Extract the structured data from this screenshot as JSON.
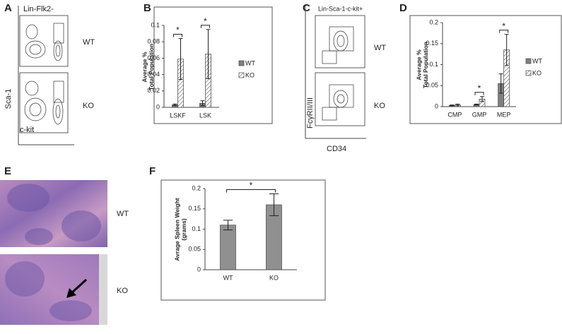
{
  "figure": {
    "panel_a": {
      "letter": "A",
      "gate": "Lin-Flk2-",
      "top_label": "WT",
      "bottom_label": "KO",
      "y_label": "Sca-1",
      "x_label": "c-kit"
    },
    "panel_b_letter": "B",
    "panel_c": {
      "letter": "C",
      "gate": "Lin-Sca-1-c-kit+",
      "top_label": "WT",
      "bottom_label": "KO",
      "y_label": "FcγRII/III",
      "x_label": "CD34"
    },
    "panel_d_letter": "D",
    "panel_e": {
      "letter": "E",
      "top_label": "WT",
      "bottom_label": "KO"
    },
    "panel_f_letter": "F"
  },
  "chart_data": [
    {
      "type": "bar",
      "y_label": "Average % Total Population",
      "categories": [
        "LSKF",
        "LSK"
      ],
      "series": [
        {
          "name": "WT",
          "color": "#808080",
          "values": [
            0.003,
            0.005
          ],
          "errors": [
            0.001,
            0.003
          ]
        },
        {
          "name": "KO",
          "color": "#ffffff",
          "hatched": true,
          "values": [
            0.059,
            0.065
          ],
          "errors": [
            0.025,
            0.03
          ]
        }
      ],
      "ylim": [
        0,
        0.1
      ],
      "yticks": [
        0,
        0.02,
        0.04,
        0.06,
        0.08,
        0.1
      ],
      "annotations": [
        "*",
        "*"
      ],
      "legend": "right"
    },
    {
      "type": "bar",
      "y_label": "Average % Total Population",
      "categories": [
        "CMP",
        "GMP",
        "MEP"
      ],
      "series": [
        {
          "name": "WT",
          "color": "#808080",
          "values": [
            0.003,
            0.005,
            0.055
          ],
          "errors": [
            0.001,
            0.001,
            0.023
          ]
        },
        {
          "name": "KO",
          "color": "#ffffff",
          "hatched": true,
          "values": [
            0.004,
            0.018,
            0.135
          ],
          "errors": [
            0.002,
            0.006,
            0.037
          ]
        }
      ],
      "ylim": [
        0,
        0.2
      ],
      "yticks": [
        0,
        0.05,
        0.1,
        0.15,
        0.2
      ],
      "annotations": [
        "*",
        "*"
      ],
      "legend": "right"
    },
    {
      "type": "bar",
      "y_label": "Avrage Spleen Weight (grams)",
      "categories": [
        "WT",
        "KO"
      ],
      "values": [
        0.11,
        0.16
      ],
      "errors": [
        0.012,
        0.027
      ],
      "color": "#909090",
      "ylim": [
        0,
        0.2
      ],
      "yticks": [
        0,
        0.05,
        0.1,
        0.15,
        0.2
      ],
      "annotations": [
        "*"
      ]
    }
  ]
}
